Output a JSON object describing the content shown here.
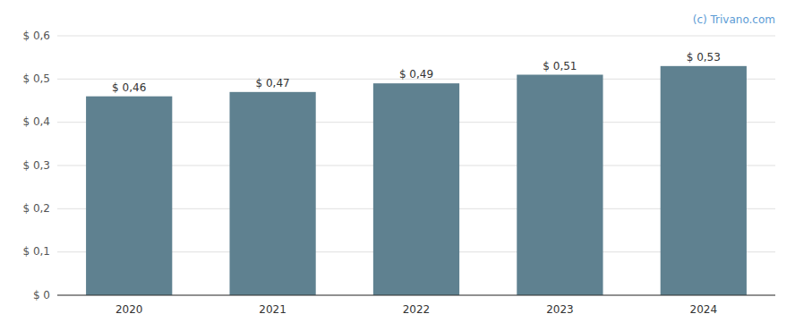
{
  "chart_data": {
    "type": "bar",
    "categories": [
      "2020",
      "2021",
      "2022",
      "2023",
      "2024"
    ],
    "values": [
      0.46,
      0.47,
      0.49,
      0.51,
      0.53
    ],
    "value_labels": [
      "$ 0,46",
      "$ 0,47",
      "$ 0,49",
      "$ 0,51",
      "$ 0,53"
    ],
    "data_labels": true,
    "color": "#5f8190",
    "ylim": [
      0,
      0.6
    ],
    "yticks": [
      {
        "value": 0.0,
        "label": "$ 0"
      },
      {
        "value": 0.1,
        "label": "$ 0,1"
      },
      {
        "value": 0.2,
        "label": "$ 0,2"
      },
      {
        "value": 0.3,
        "label": "$ 0,3"
      },
      {
        "value": 0.4,
        "label": "$ 0,4"
      },
      {
        "value": 0.5,
        "label": "$ 0,5"
      },
      {
        "value": 0.6,
        "label": "$ 0,6"
      }
    ],
    "grid": true,
    "annotations": [
      "(c) Trivano.com"
    ]
  }
}
